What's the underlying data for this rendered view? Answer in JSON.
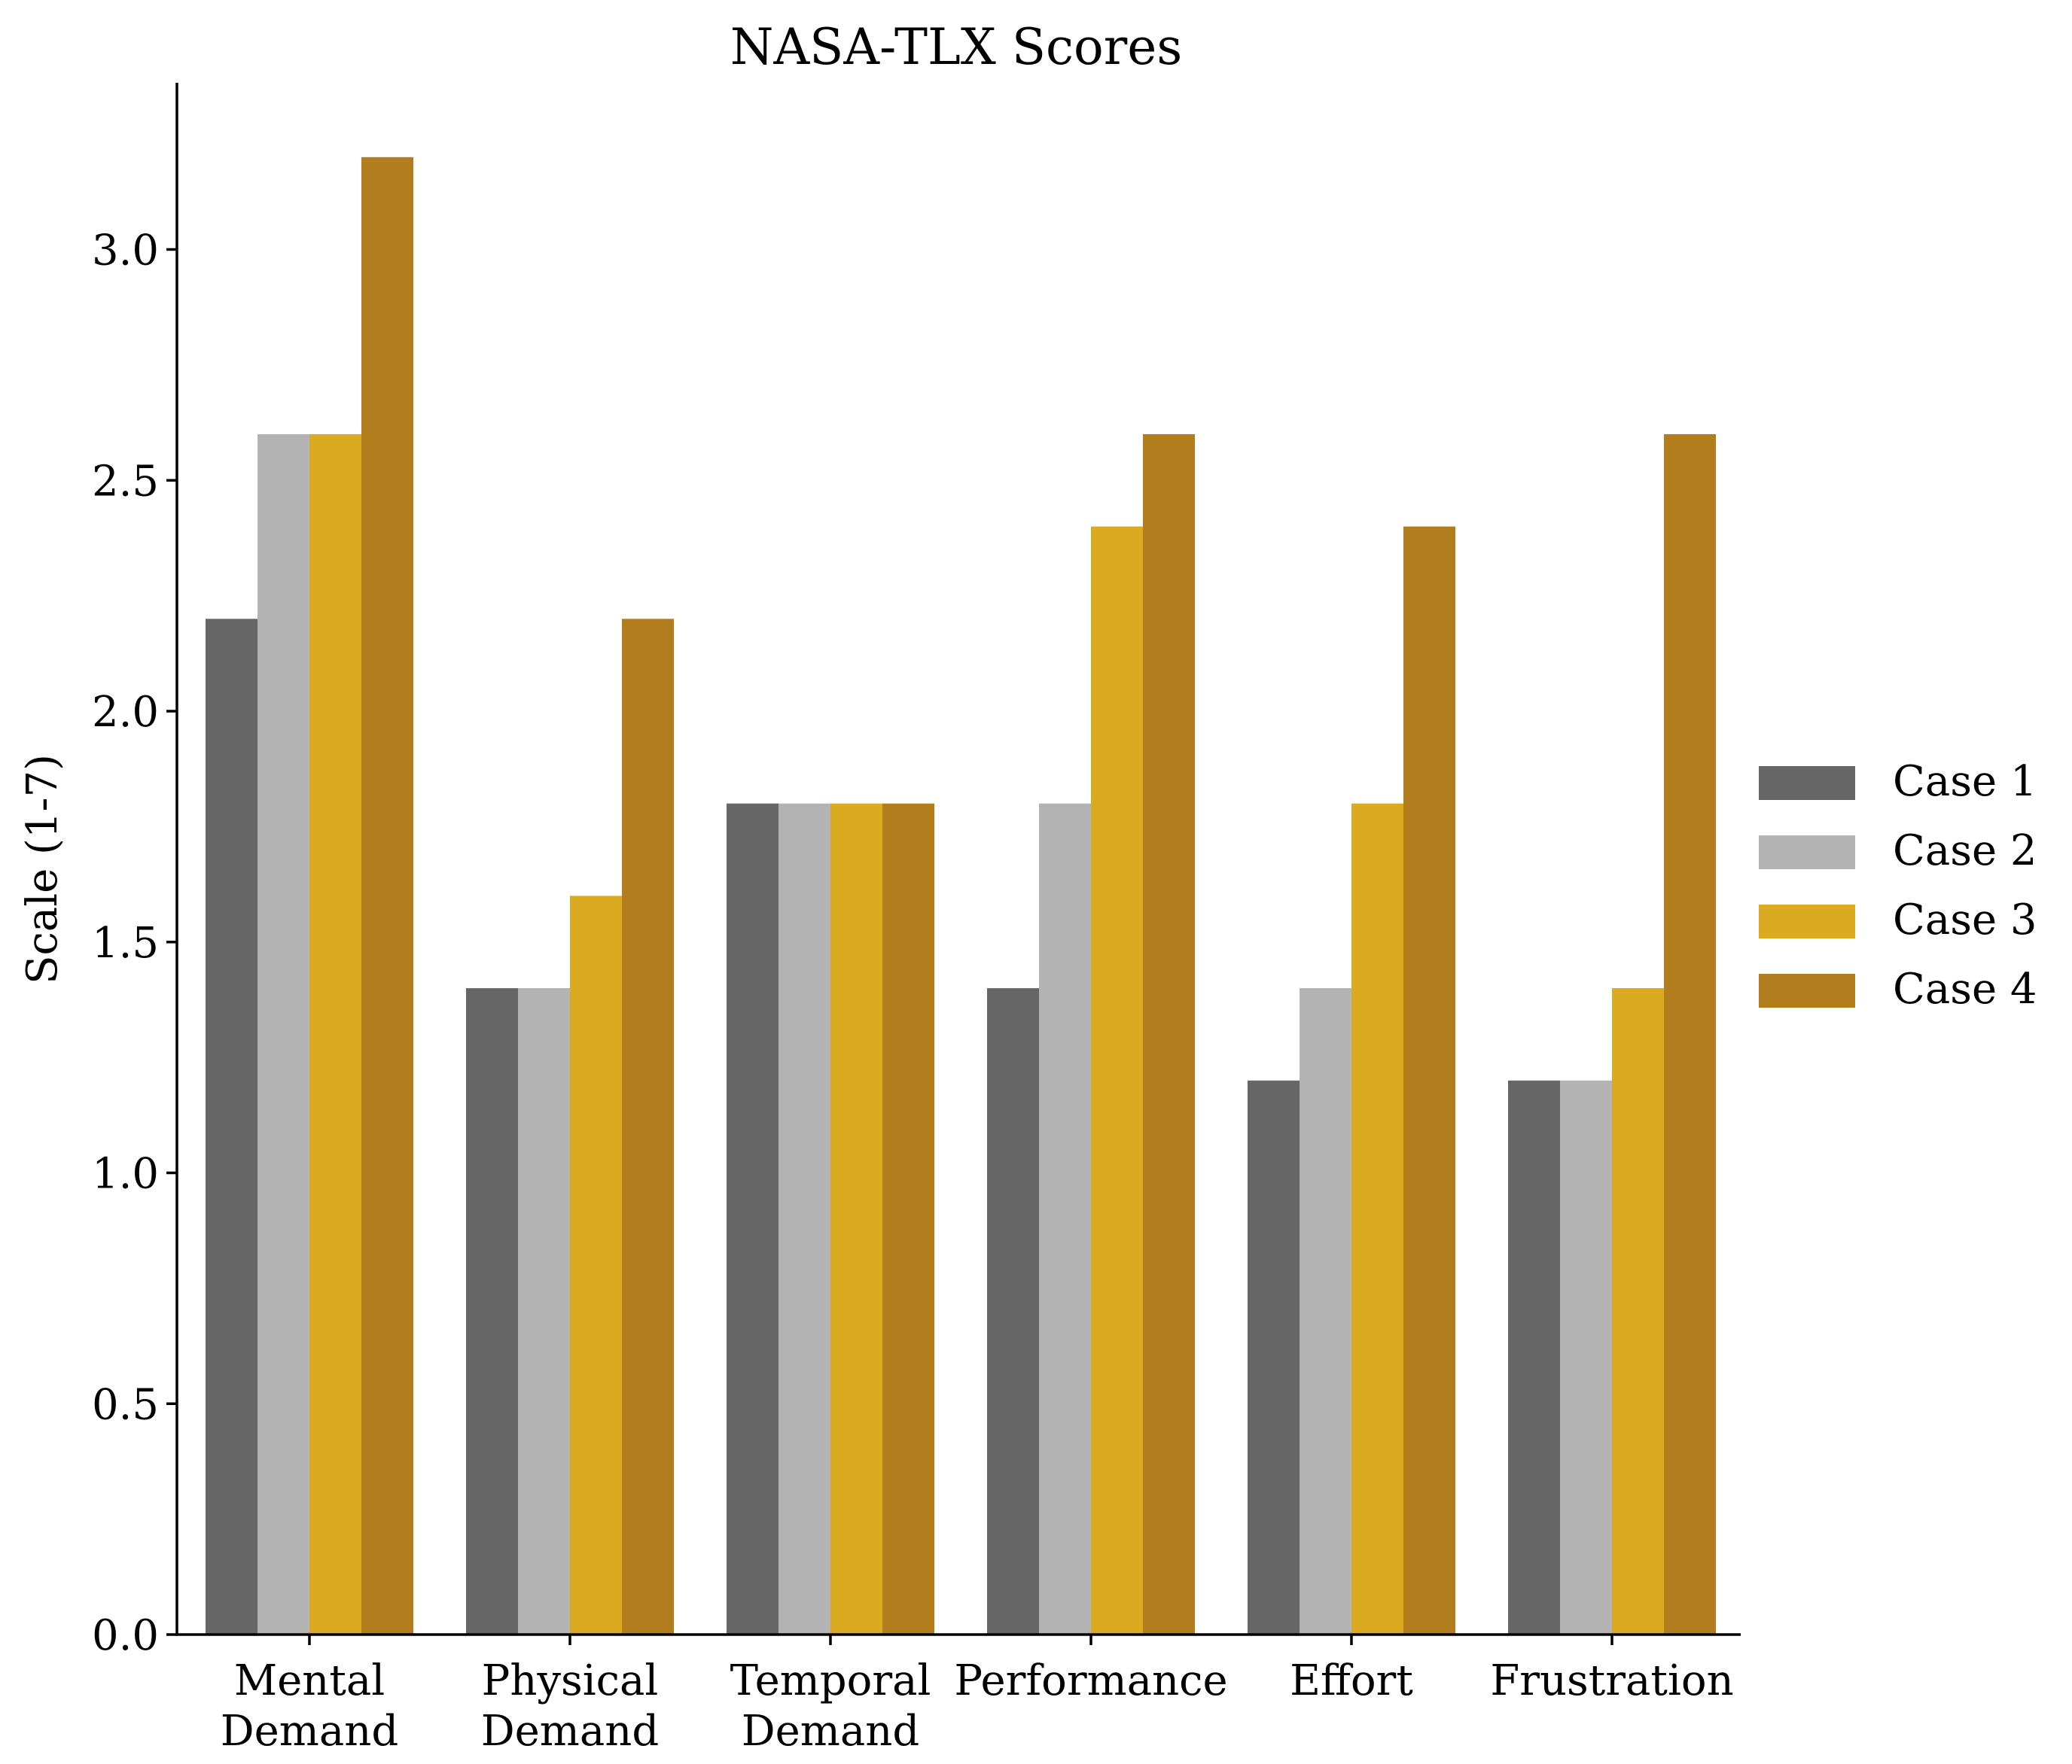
{
  "chart_data": {
    "type": "bar",
    "title": "NASA-TLX Scores",
    "xlabel": "",
    "ylabel": "Scale (1-7)",
    "ylim": [
      0,
      3.36
    ],
    "yticks": [
      "0.0",
      "0.5",
      "1.0",
      "1.5",
      "2.0",
      "2.5",
      "3.0"
    ],
    "ytick_values": [
      0,
      0.5,
      1.0,
      1.5,
      2.0,
      2.5,
      3.0
    ],
    "categories": [
      [
        "Mental",
        "Demand"
      ],
      [
        "Physical",
        "Demand"
      ],
      [
        "Temporal",
        "Demand"
      ],
      [
        "Performance"
      ],
      [
        "Effort"
      ],
      [
        "Frustration"
      ]
    ],
    "series": [
      {
        "name": "Case 1",
        "color": "#666666",
        "values": [
          2.2,
          1.4,
          1.8,
          1.4,
          1.2,
          1.2
        ]
      },
      {
        "name": "Case 2",
        "color": "#b3b3b3",
        "values": [
          2.6,
          1.4,
          1.8,
          1.8,
          1.4,
          1.2
        ]
      },
      {
        "name": "Case 3",
        "color": "#daaa20",
        "values": [
          2.6,
          1.6,
          1.8,
          2.4,
          1.8,
          1.4
        ]
      },
      {
        "name": "Case 4",
        "color": "#b27d1c",
        "values": [
          3.2,
          2.2,
          1.8,
          2.6,
          2.4,
          2.6
        ]
      }
    ],
    "grid": false,
    "legend_position": "center-right"
  }
}
